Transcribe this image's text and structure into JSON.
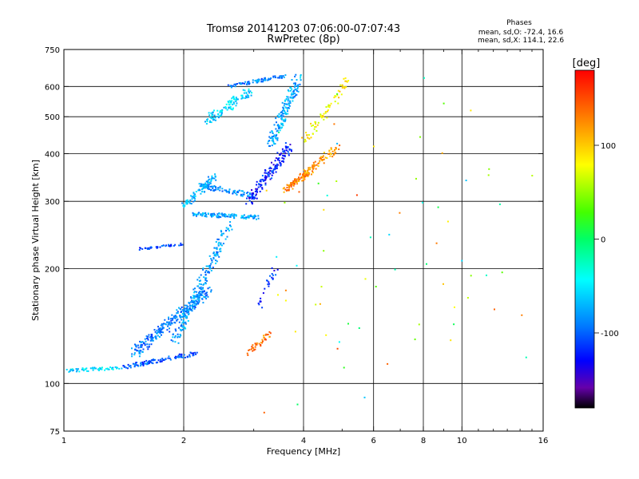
{
  "chart_data": {
    "type": "scatter",
    "title": "Tromsø 20141203 07:06:00-07:07:43",
    "subtitle": "RwPretec (8p)",
    "xlabel": "Frequency [MHz]",
    "ylabel": "Stationary phase Virtual Height [km]",
    "x_scale": "log",
    "y_scale": "log",
    "xlim": [
      1,
      16
    ],
    "ylim": [
      75,
      750
    ],
    "x_ticks": [
      1,
      2,
      4,
      6,
      8,
      10,
      16
    ],
    "y_ticks": [
      75,
      100,
      200,
      300,
      400,
      500,
      600,
      750
    ],
    "grid": true,
    "phases_box": {
      "title": "Phases",
      "line1": "mean, sd,O: -72.4, 16.6",
      "line2": "mean, sd,X: 114.1, 22.6"
    },
    "colorbar": {
      "label": "[deg]",
      "range": [
        -180,
        180
      ],
      "ticks": [
        100,
        0,
        -100
      ]
    },
    "clusters": [
      {
        "x": [
          1.02,
          1.4
        ],
        "y": [
          108,
          110
        ],
        "phase": -60,
        "spread": 0.02,
        "n": 60
      },
      {
        "x": [
          1.4,
          2.15
        ],
        "y": [
          110,
          120
        ],
        "phase": -105,
        "spread": 0.025,
        "n": 110
      },
      {
        "x": [
          1.5,
          2.3
        ],
        "y": [
          120,
          175
        ],
        "phase": -90,
        "spread": 0.06,
        "n": 260
      },
      {
        "x": [
          1.9,
          2.6
        ],
        "y": [
          130,
          260
        ],
        "phase": -80,
        "spread": 0.05,
        "n": 200
      },
      {
        "x": [
          1.55,
          1.98
        ],
        "y": [
          225,
          232
        ],
        "phase": -110,
        "spread": 0.015,
        "n": 45
      },
      {
        "x": [
          2.1,
          3.1
        ],
        "y": [
          278,
          272
        ],
        "phase": -75,
        "spread": 0.025,
        "n": 110
      },
      {
        "x": [
          2.0,
          2.4
        ],
        "y": [
          290,
          350
        ],
        "phase": -70,
        "spread": 0.04,
        "n": 80
      },
      {
        "x": [
          2.2,
          3.0
        ],
        "y": [
          330,
          310
        ],
        "phase": -85,
        "spread": 0.03,
        "n": 90
      },
      {
        "x": [
          2.3,
          2.9
        ],
        "y": [
          490,
          580
        ],
        "phase": -60,
        "spread": 0.05,
        "n": 110
      },
      {
        "x": [
          2.6,
          3.6
        ],
        "y": [
          600,
          640
        ],
        "phase": -90,
        "spread": 0.02,
        "n": 80
      },
      {
        "x": [
          2.9,
          3.7
        ],
        "y": [
          300,
          420
        ],
        "phase": -120,
        "spread": 0.05,
        "n": 160
      },
      {
        "x": [
          3.3,
          3.9
        ],
        "y": [
          420,
          640
        ],
        "phase": -75,
        "spread": 0.05,
        "n": 170
      },
      {
        "x": [
          3.6,
          4.1
        ],
        "y": [
          320,
          360
        ],
        "phase": 130,
        "spread": 0.03,
        "n": 80
      },
      {
        "x": [
          3.9,
          4.9
        ],
        "y": [
          340,
          420
        ],
        "phase": 120,
        "spread": 0.04,
        "n": 90
      },
      {
        "x": [
          4.0,
          5.2
        ],
        "y": [
          430,
          620
        ],
        "phase": 85,
        "spread": 0.05,
        "n": 70
      },
      {
        "x": [
          2.9,
          3.3
        ],
        "y": [
          120,
          135
        ],
        "phase": 135,
        "spread": 0.03,
        "n": 40
      },
      {
        "x": [
          3.1,
          3.4
        ],
        "y": [
          160,
          200
        ],
        "phase": -120,
        "spread": 0.04,
        "n": 25
      },
      {
        "x": [
          3.6,
          12.8
        ],
        "y": [
          85,
          650
        ],
        "phase": 40,
        "spread": 0.5,
        "n": 70
      }
    ]
  }
}
